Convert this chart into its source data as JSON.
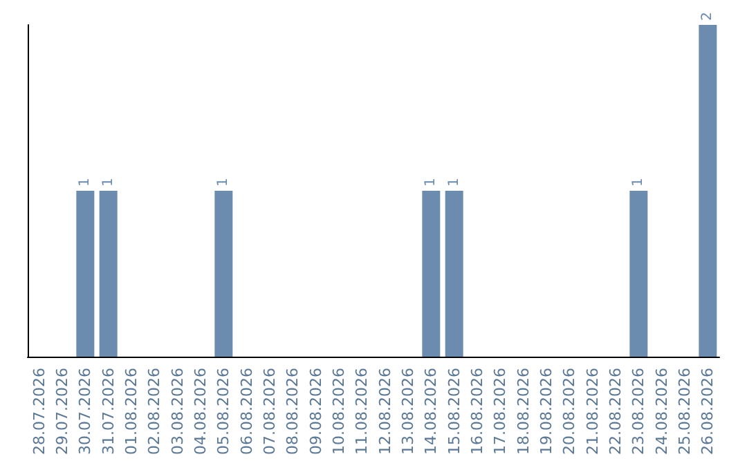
{
  "chart_data": {
    "type": "bar",
    "categories": [
      "28.07.2026",
      "29.07.2026",
      "30.07.2026",
      "31.07.2026",
      "01.08.2026",
      "02.08.2026",
      "03.08.2026",
      "04.08.2026",
      "05.08.2026",
      "06.08.2026",
      "07.08.2026",
      "08.08.2026",
      "09.08.2026",
      "10.08.2026",
      "11.08.2026",
      "12.08.2026",
      "13.08.2026",
      "14.08.2026",
      "15.08.2026",
      "16.08.2026",
      "17.08.2026",
      "18.08.2026",
      "19.08.2026",
      "20.08.2026",
      "21.08.2026",
      "22.08.2026",
      "23.08.2026",
      "24.08.2026",
      "25.08.2026",
      "26.08.2026"
    ],
    "values": [
      0,
      0,
      1,
      1,
      0,
      0,
      0,
      0,
      1,
      0,
      0,
      0,
      0,
      0,
      0,
      0,
      0,
      1,
      1,
      0,
      0,
      0,
      0,
      0,
      0,
      0,
      1,
      0,
      0,
      2
    ],
    "value_labels": [
      null,
      null,
      "1",
      "1",
      null,
      null,
      null,
      null,
      "1",
      null,
      null,
      null,
      null,
      null,
      null,
      null,
      null,
      "1",
      "1",
      null,
      null,
      null,
      null,
      null,
      null,
      null,
      "1",
      null,
      null,
      "2"
    ],
    "color": "#6b8cae",
    "tick_labels": "x"
  }
}
